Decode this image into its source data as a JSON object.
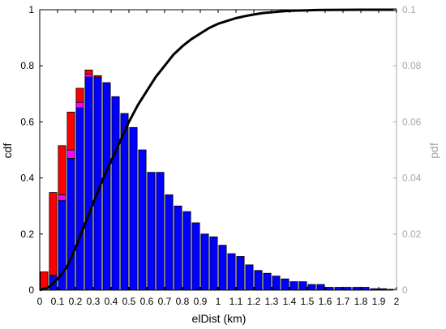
{
  "chart_data": {
    "type": "bar",
    "xlabel": "elDist (km)",
    "ylabel_left": "cdf",
    "ylabel_right": "pdf",
    "xlim": [
      0,
      2
    ],
    "ylim_left": [
      0,
      1
    ],
    "ylim_right": [
      0,
      0.1
    ],
    "grid": false,
    "bin_width": 0.05,
    "x_ticks": [
      "0",
      "0.1",
      "0.2",
      "0.3",
      "0.4",
      "0.5",
      "0.6",
      "0.7",
      "0.8",
      "0.9",
      "1",
      "1.1",
      "1.2",
      "1.3",
      "1.4",
      "1.5",
      "1.6",
      "1.7",
      "1.8",
      "1.9",
      "2"
    ],
    "y_ticks_left": [
      "0",
      "0.2",
      "0.4",
      "0.6",
      "0.8",
      "1"
    ],
    "y_ticks_right": [
      "0",
      "0.02",
      "0.04",
      "0.06",
      "0.08",
      "0.1"
    ],
    "colors": {
      "blue": "#0000ff",
      "magenta": "#ff00ff",
      "red": "#ff0000",
      "cdf_line": "#000000",
      "right_axis": "#a6a6a6"
    },
    "pdf_bins": {
      "bin_left": [
        0,
        0.05,
        0.1,
        0.15,
        0.2,
        0.25,
        0.3,
        0.35,
        0.4,
        0.45,
        0.5,
        0.55,
        0.6,
        0.65,
        0.7,
        0.75,
        0.8,
        0.85,
        0.9,
        0.95,
        1.0,
        1.05,
        1.1,
        1.15,
        1.2,
        1.25,
        1.3,
        1.35,
        1.4,
        1.45,
        1.5,
        1.55,
        1.6,
        1.65,
        1.7,
        1.75,
        1.8,
        1.85,
        1.9,
        1.95
      ],
      "series": [
        {
          "color": "blue",
          "values": [
            0.0,
            0.005,
            0.032,
            0.047,
            0.065,
            0.076,
            0.076,
            0.074,
            0.069,
            0.063,
            0.058,
            0.05,
            0.042,
            0.042,
            0.034,
            0.03,
            0.028,
            0.024,
            0.02,
            0.019,
            0.016,
            0.013,
            0.012,
            0.009,
            0.007,
            0.006,
            0.005,
            0.004,
            0.003,
            0.003,
            0.002,
            0.002,
            0.001,
            0.001,
            0.001,
            0.001,
            0.001,
            0.0005,
            0.0005,
            0.0003
          ]
        },
        {
          "color": "magenta",
          "values": [
            0.0,
            0.0003,
            0.002,
            0.003,
            0.002,
            0.001,
            0.0,
            0.0,
            0.0,
            0.0,
            0.0,
            0.0,
            0.0,
            0.0,
            0.0,
            0.0,
            0.0,
            0.0,
            0.0,
            0.0,
            0.0,
            0.0,
            0.0,
            0.0,
            0.0,
            0.0,
            0.0,
            0.0,
            0.0,
            0.0,
            0.0,
            0.0,
            0.0,
            0.0,
            0.0,
            0.0,
            0.0,
            0.0,
            0.0,
            0.0
          ]
        },
        {
          "color": "red",
          "values": [
            0.0065,
            0.0295,
            0.0175,
            0.0135,
            0.005,
            0.0015,
            0.0005,
            0.0,
            0.0,
            0.0,
            0.0,
            0.0,
            0.0,
            0.0,
            0.0,
            0.0,
            0.0,
            0.0,
            0.0,
            0.0,
            0.0,
            0.0,
            0.0,
            0.0,
            0.0,
            0.0,
            0.0,
            0.0,
            0.0,
            0.0,
            0.0,
            0.0,
            0.0,
            0.0,
            0.0,
            0.0,
            0.0,
            0.0,
            0.0,
            0.0
          ]
        }
      ]
    },
    "cdf_line": {
      "x": [
        0,
        0.05,
        0.1,
        0.15,
        0.2,
        0.25,
        0.3,
        0.35,
        0.4,
        0.45,
        0.5,
        0.55,
        0.6,
        0.65,
        0.7,
        0.75,
        0.8,
        0.85,
        0.9,
        0.95,
        1.0,
        1.05,
        1.1,
        1.15,
        1.2,
        1.25,
        1.3,
        1.35,
        1.4,
        1.45,
        1.5,
        1.55,
        1.6,
        1.7,
        1.8,
        1.9,
        2.0
      ],
      "y": [
        0.0,
        0.01,
        0.04,
        0.08,
        0.15,
        0.23,
        0.31,
        0.39,
        0.46,
        0.53,
        0.6,
        0.66,
        0.71,
        0.76,
        0.8,
        0.84,
        0.87,
        0.895,
        0.915,
        0.935,
        0.95,
        0.96,
        0.97,
        0.977,
        0.983,
        0.988,
        0.991,
        0.994,
        0.996,
        0.997,
        0.998,
        0.999,
        0.9993,
        0.9997,
        0.9999,
        1.0,
        1.0
      ]
    }
  }
}
